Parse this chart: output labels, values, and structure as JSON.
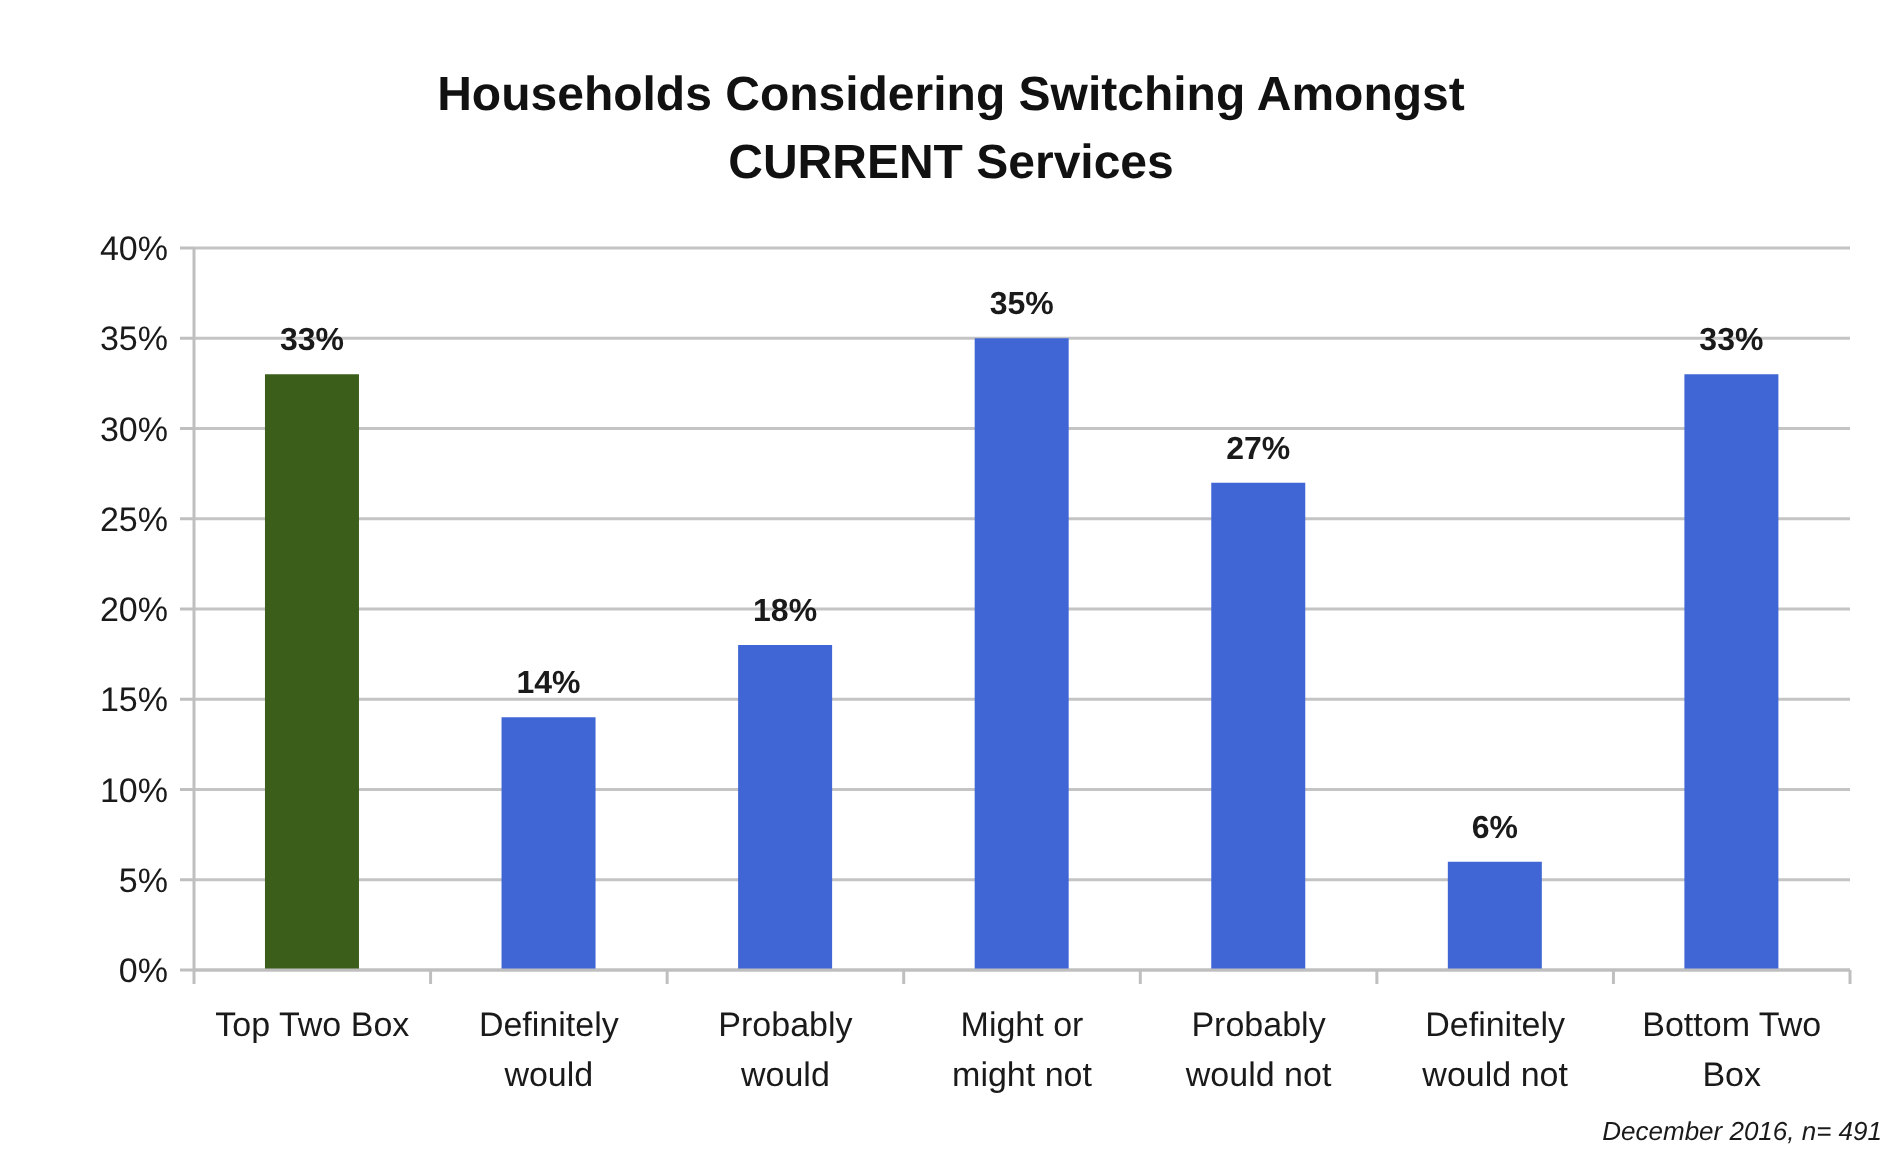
{
  "chart_data": {
    "type": "bar",
    "title": "Households Considering Switching Amongst CURRENT Services",
    "categories": [
      "Top Two Box",
      "Definitely would",
      "Probably would",
      "Might or might not",
      "Probably would not",
      "Definitely would not",
      "Bottom Two Box"
    ],
    "values": [
      33,
      14,
      18,
      35,
      27,
      6,
      33
    ],
    "colors": [
      "#3b5e1a",
      "#3f66d4",
      "#3f66d4",
      "#3f66d4",
      "#3f66d4",
      "#3f66d4",
      "#3f66d4"
    ],
    "value_labels": [
      "33%",
      "14%",
      "18%",
      "35%",
      "27%",
      "6%",
      "33%"
    ],
    "ylim": [
      0,
      40
    ],
    "yticks": [
      {
        "value": 0,
        "label": "0%"
      },
      {
        "value": 5,
        "label": "5%"
      },
      {
        "value": 10,
        "label": "10%"
      },
      {
        "value": 15,
        "label": "15%"
      },
      {
        "value": 20,
        "label": "20%"
      },
      {
        "value": 25,
        "label": "25%"
      },
      {
        "value": 30,
        "label": "30%"
      },
      {
        "value": 35,
        "label": "35%"
      },
      {
        "value": 40,
        "label": "40%"
      }
    ],
    "grid": "y",
    "annotations": [
      "December 2016, n= 491"
    ]
  }
}
